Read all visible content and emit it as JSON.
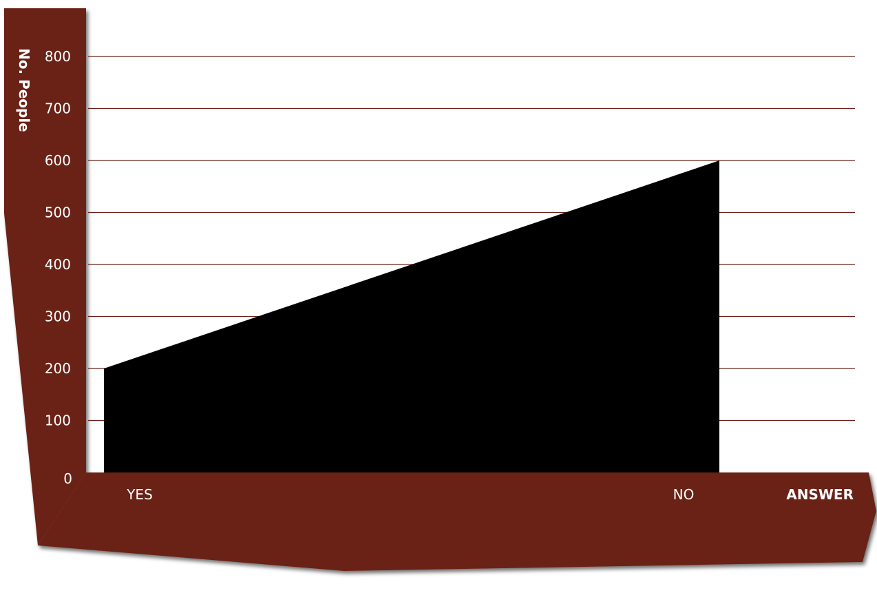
{
  "chart_data": {
    "type": "area",
    "title": "",
    "xlabel": "ANSWER",
    "ylabel": "No. People",
    "categories": [
      "YES",
      "NO"
    ],
    "series": [
      {
        "values": [
          200,
          600
        ]
      }
    ],
    "ylim": [
      0,
      800
    ],
    "y_ticks": [
      "0",
      "100",
      "200",
      "300",
      "400",
      "500",
      "600",
      "700",
      "800"
    ],
    "grid": true,
    "colors": {
      "frame": "#6b2017",
      "area": "#000000",
      "grid": "#6b2017",
      "tick_text": "#ffffff",
      "category_text": "#ffffff",
      "axis_title_text": "#ffffff"
    }
  }
}
